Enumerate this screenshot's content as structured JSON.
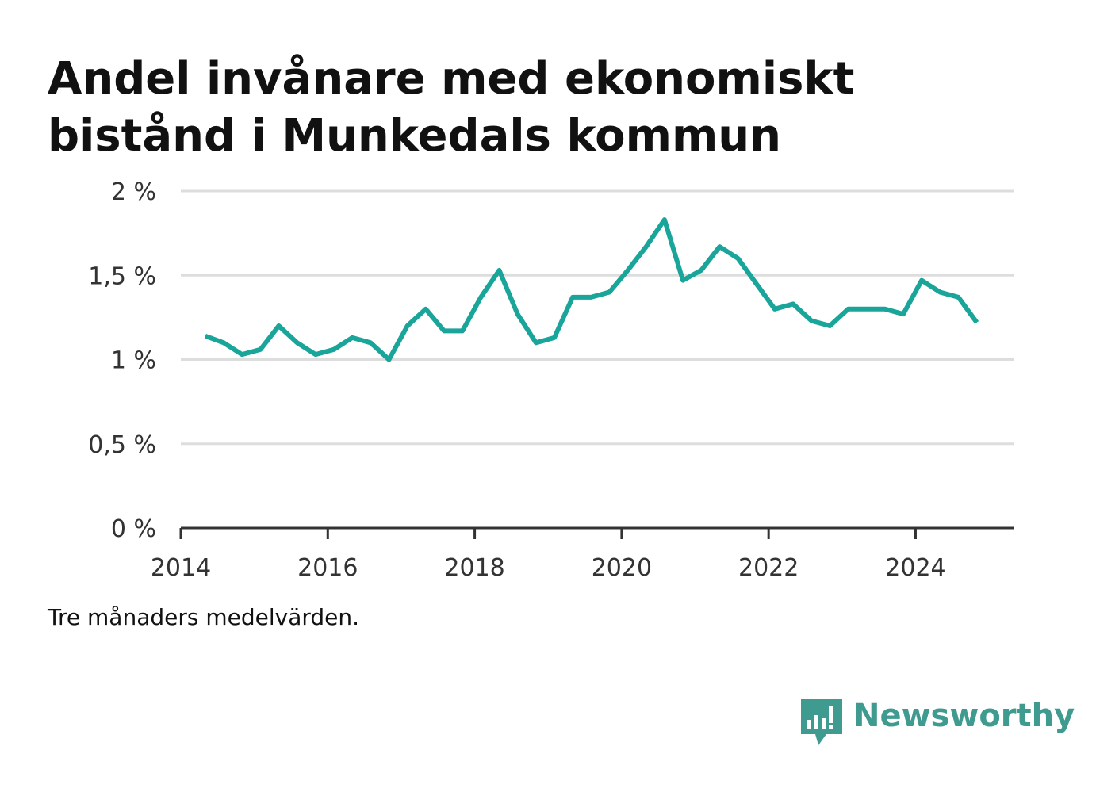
{
  "title_lines": [
    "Andel invånare med ekonomiskt",
    "bistånd i Munkedals kommun"
  ],
  "note": "Tre månaders medelvärden.",
  "brand": {
    "name": "Newsworthy",
    "icon": "newsworthy-logo-icon",
    "color": "#3f9a8f"
  },
  "colors": {
    "line": "#1aa59a",
    "grid": "#dddddd",
    "axis": "#333333",
    "text": "#111111",
    "tick_text": "#333333"
  },
  "chart_data": {
    "type": "line",
    "title": "Andel invånare med ekonomiskt bistånd i Munkedals kommun",
    "xlabel": "",
    "ylabel": "",
    "xlim": [
      "2014-01-01",
      "2025-05-01"
    ],
    "ylim": [
      0,
      2
    ],
    "grid": true,
    "y_ticks": [
      {
        "value": 0,
        "label": "0 %"
      },
      {
        "value": 0.5,
        "label": "0,5 %"
      },
      {
        "value": 1,
        "label": "1 %"
      },
      {
        "value": 1.5,
        "label": "1,5 %"
      },
      {
        "value": 2,
        "label": "2 %"
      }
    ],
    "x_ticks": [
      {
        "value": "2014-01-01",
        "label": "2014"
      },
      {
        "value": "2016-01-01",
        "label": "2016"
      },
      {
        "value": "2018-01-01",
        "label": "2018"
      },
      {
        "value": "2020-01-01",
        "label": "2020"
      },
      {
        "value": "2022-01-01",
        "label": "2022"
      },
      {
        "value": "2024-01-01",
        "label": "2024"
      }
    ],
    "series": [
      {
        "x": [
          "2014-05",
          "2014-08",
          "2014-11",
          "2015-02",
          "2015-05",
          "2015-08",
          "2015-11",
          "2016-02",
          "2016-05",
          "2016-08",
          "2016-11",
          "2017-02",
          "2017-05",
          "2017-08",
          "2017-11",
          "2018-02",
          "2018-05",
          "2018-08",
          "2018-11",
          "2019-02",
          "2019-05",
          "2019-08",
          "2019-11",
          "2020-02",
          "2020-05",
          "2020-08",
          "2020-11",
          "2021-02",
          "2021-05",
          "2021-08",
          "2021-11",
          "2022-02",
          "2022-05",
          "2022-08",
          "2022-11",
          "2023-02",
          "2023-05",
          "2023-08",
          "2023-11",
          "2024-02",
          "2024-05",
          "2024-08",
          "2024-11"
        ],
        "values": [
          1.14,
          1.1,
          1.03,
          1.06,
          1.2,
          1.1,
          1.03,
          1.06,
          1.13,
          1.1,
          1.0,
          1.2,
          1.3,
          1.17,
          1.17,
          1.37,
          1.53,
          1.27,
          1.1,
          1.13,
          1.37,
          1.37,
          1.4,
          1.53,
          1.67,
          1.83,
          1.47,
          1.53,
          1.67,
          1.6,
          1.45,
          1.3,
          1.33,
          1.23,
          1.2,
          1.3,
          1.3,
          1.3,
          1.27,
          1.47,
          1.4,
          1.37,
          1.22
        ]
      }
    ]
  }
}
